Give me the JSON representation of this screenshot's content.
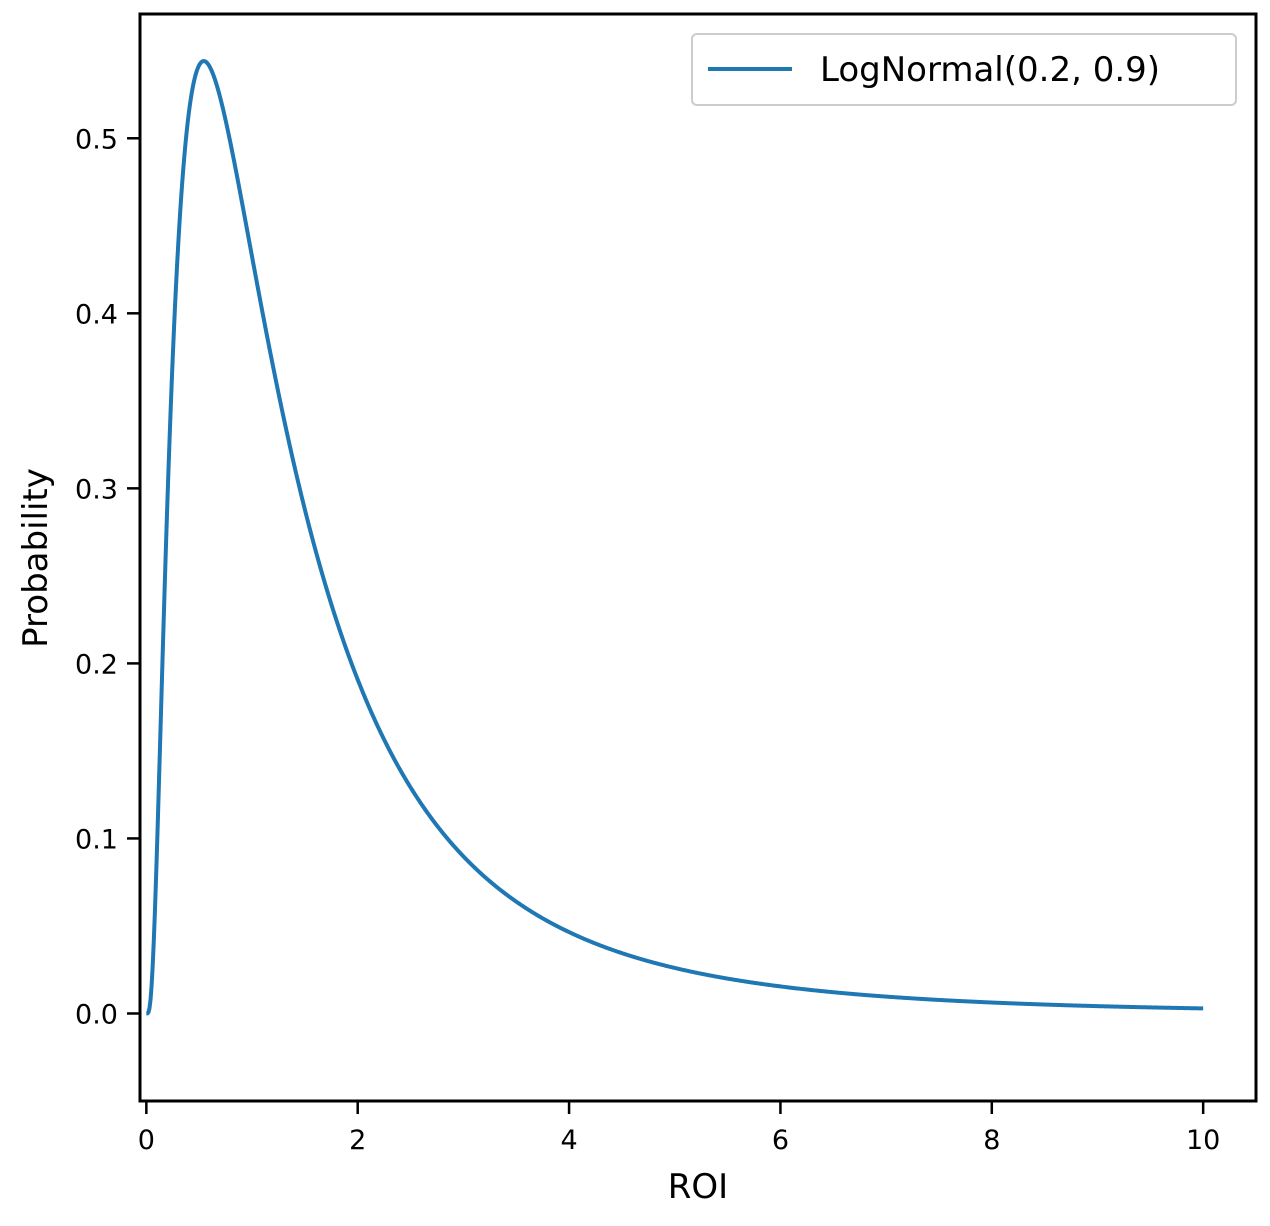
{
  "chart_data": {
    "type": "line",
    "title": "",
    "xlabel": "ROI",
    "ylabel": "Probability",
    "xlim": [
      -0.06,
      10.5
    ],
    "ylim": [
      -0.05,
      0.571
    ],
    "xticks": [
      0,
      2,
      4,
      6,
      8,
      10
    ],
    "xtick_labels": [
      "0",
      "2",
      "4",
      "6",
      "8",
      "10"
    ],
    "yticks": [
      0.0,
      0.1,
      0.2,
      0.3,
      0.4,
      0.5
    ],
    "ytick_labels": [
      "0.0",
      "0.1",
      "0.2",
      "0.3",
      "0.4",
      "0.5"
    ],
    "grid": false,
    "legend_position": "top-right",
    "series": [
      {
        "name": "LogNormal(0.2, 0.9)",
        "color": "#1f77b4",
        "distribution": "lognormal",
        "mu": 0.2,
        "sigma": 0.9,
        "x_range": [
          0,
          10
        ]
      }
    ]
  }
}
